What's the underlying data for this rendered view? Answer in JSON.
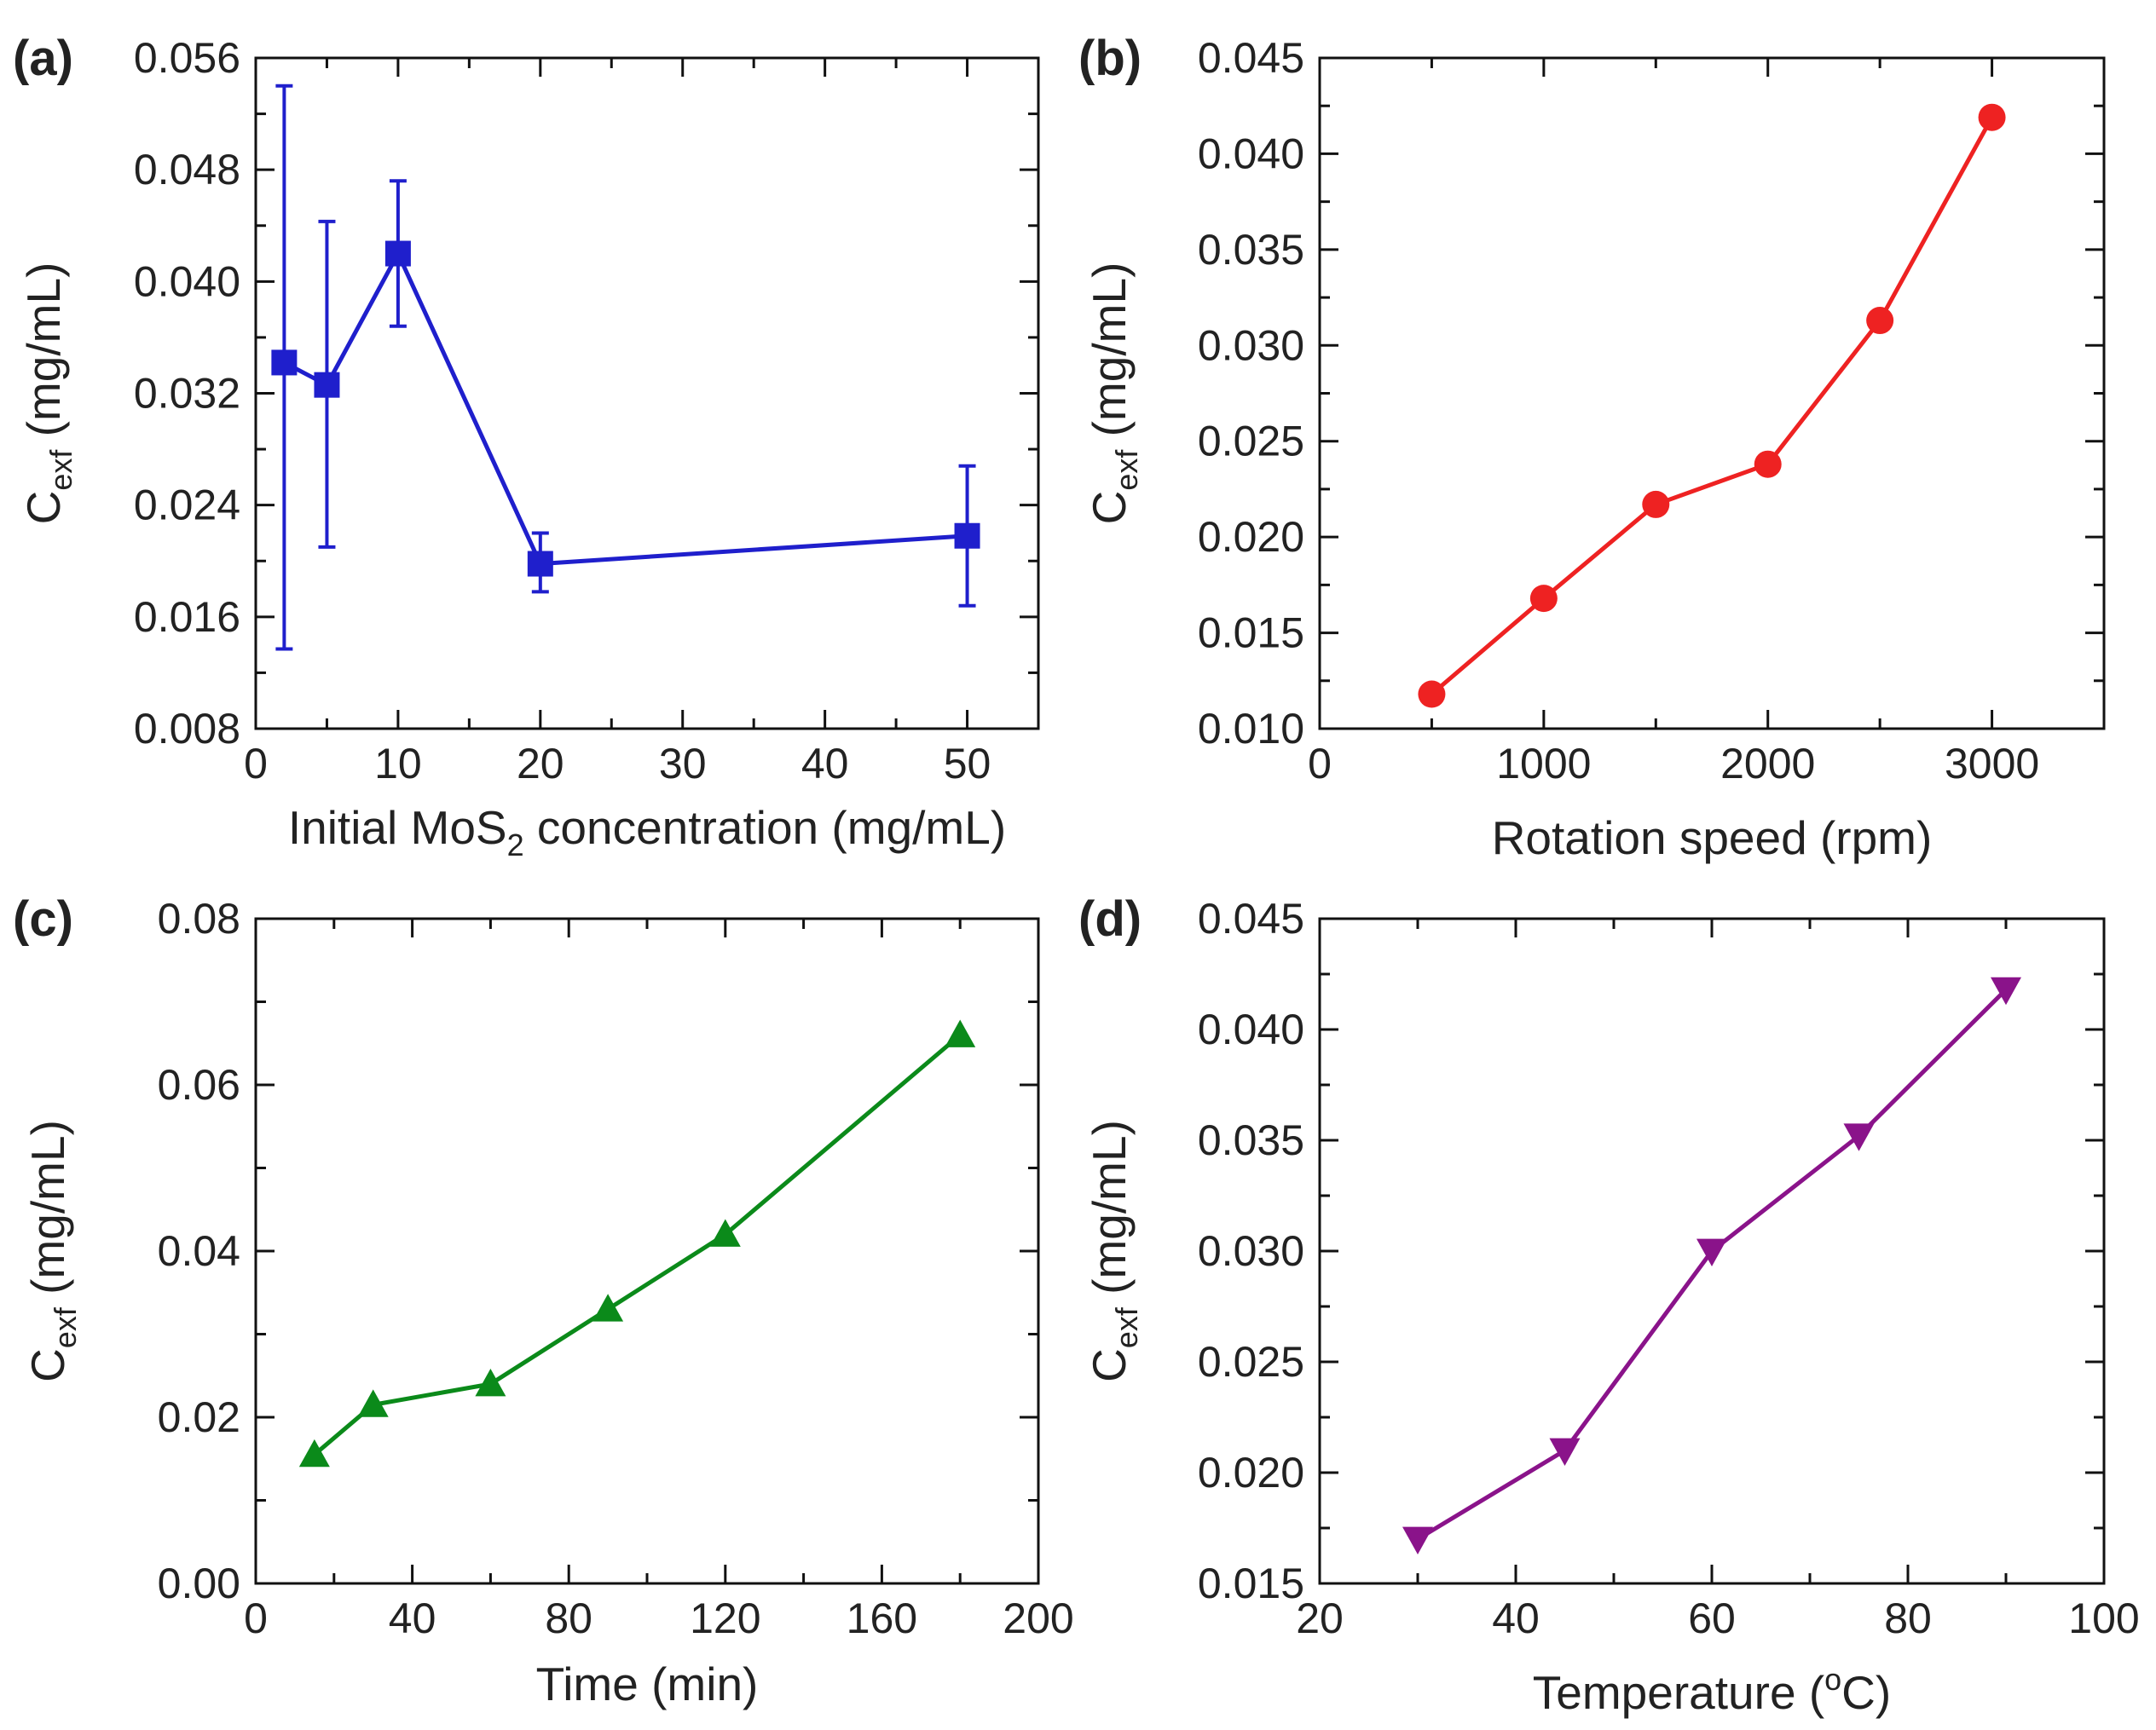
{
  "chart_data": [
    {
      "id": "a",
      "panel_label": "(a)",
      "type": "line",
      "marker": "square",
      "color": "#1f1fcc",
      "xlabel": {
        "pre": "Initial MoS",
        "sub": "2",
        "post": " concentration (mg/mL)"
      },
      "ylabel": {
        "main": "C",
        "sub": "exf",
        "unit": " (mg/mL)"
      },
      "xlim": [
        0,
        55
      ],
      "ylim": [
        0.008,
        0.056
      ],
      "xticks": [
        0,
        10,
        20,
        30,
        40,
        50
      ],
      "xtick_labels": [
        "0",
        "10",
        "20",
        "30",
        "40",
        "50"
      ],
      "yticks": [
        0.008,
        0.016,
        0.024,
        0.032,
        0.04,
        0.048,
        0.056
      ],
      "ytick_labels": [
        "0.008",
        "0.016",
        "0.024",
        "0.032",
        "0.040",
        "0.048",
        "0.056"
      ],
      "x": [
        2,
        5,
        10,
        20,
        50
      ],
      "y": [
        0.0342,
        0.0326,
        0.042,
        0.0198,
        0.0218
      ],
      "yerr_low": [
        0.0137,
        0.021,
        0.0368,
        0.0178,
        0.0168
      ],
      "yerr_high": [
        0.054,
        0.0443,
        0.0472,
        0.022,
        0.0268
      ]
    },
    {
      "id": "b",
      "panel_label": "(b)",
      "type": "line",
      "marker": "circle",
      "color": "#ee2222",
      "xlabel": {
        "pre": "Rotation speed (rpm)",
        "sub": "",
        "post": ""
      },
      "ylabel": {
        "main": "C",
        "sub": "exf",
        "unit": " (mg/mL)"
      },
      "xlim": [
        0,
        3500
      ],
      "ylim": [
        0.01,
        0.045
      ],
      "xticks": [
        0,
        1000,
        2000,
        3000
      ],
      "xtick_labels": [
        "0",
        "1000",
        "2000",
        "3000"
      ],
      "yticks": [
        0.01,
        0.015,
        0.02,
        0.025,
        0.03,
        0.035,
        0.04,
        0.045
      ],
      "ytick_labels": [
        "0.010",
        "0.015",
        "0.020",
        "0.025",
        "0.030",
        "0.035",
        "0.040",
        "0.045"
      ],
      "x": [
        500,
        1000,
        1500,
        2000,
        2500,
        3000
      ],
      "y": [
        0.0118,
        0.0168,
        0.0217,
        0.0238,
        0.0313,
        0.0419
      ]
    },
    {
      "id": "c",
      "panel_label": "(c)",
      "type": "line",
      "marker": "triangle-up",
      "color": "#0b8a1a",
      "xlabel": {
        "pre": "Time (min)",
        "sub": "",
        "post": ""
      },
      "ylabel": {
        "main": "C",
        "sub": "exf",
        "unit": " (mg/mL)"
      },
      "xlim": [
        0,
        200
      ],
      "ylim": [
        0.0,
        0.08
      ],
      "xticks": [
        0,
        40,
        80,
        120,
        160,
        200
      ],
      "xtick_labels": [
        "0",
        "40",
        "80",
        "120",
        "160",
        "200"
      ],
      "yticks": [
        0.0,
        0.02,
        0.04,
        0.06,
        0.08
      ],
      "ytick_labels": [
        "0.00",
        "0.02",
        "0.04",
        "0.06",
        "0.08"
      ],
      "x": [
        15,
        30,
        60,
        90,
        120,
        180
      ],
      "y": [
        0.0155,
        0.0215,
        0.024,
        0.033,
        0.042,
        0.066
      ]
    },
    {
      "id": "d",
      "panel_label": "(d)",
      "type": "line",
      "marker": "triangle-down",
      "color": "#8a138a",
      "xlabel": {
        "pre": "Temperature (",
        "sup": "o",
        "post": "C)"
      },
      "ylabel": {
        "main": "C",
        "sub": "exf",
        "unit": " (mg/mL)"
      },
      "xlim": [
        20,
        100
      ],
      "ylim": [
        0.015,
        0.045
      ],
      "xticks": [
        20,
        40,
        60,
        80,
        100
      ],
      "xtick_labels": [
        "20",
        "40",
        "60",
        "80",
        "100"
      ],
      "yticks": [
        0.015,
        0.02,
        0.025,
        0.03,
        0.035,
        0.04,
        0.045
      ],
      "ytick_labels": [
        "0.015",
        "0.020",
        "0.025",
        "0.030",
        "0.035",
        "0.040",
        "0.045"
      ],
      "x": [
        30,
        45,
        60,
        75,
        90
      ],
      "y": [
        0.017,
        0.021,
        0.03,
        0.0352,
        0.0418
      ]
    }
  ]
}
